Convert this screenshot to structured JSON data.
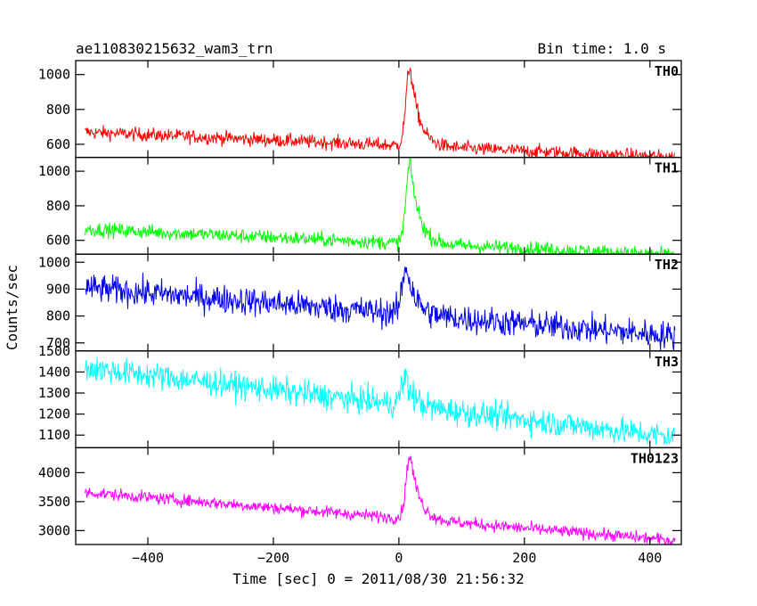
{
  "header": {
    "source_name": "ae110830215632_wam3_trn",
    "bin_time": "Bin time: 1.0 s"
  },
  "chart_data": {
    "type": "line",
    "xlabel": "Time [sec] 0 = 2011/08/30 21:56:32",
    "ylabel": "Counts/sec",
    "xlim": [
      -515,
      450
    ],
    "x_ticks": [
      -400,
      -200,
      0,
      200,
      400
    ],
    "x_range_data": [
      -500,
      440
    ],
    "bin_time_s": 1.0,
    "panels": [
      {
        "name": "TH0",
        "color": "#ff0000",
        "ylim": [
          525,
          1080
        ],
        "yticks": [
          600,
          800,
          1000
        ],
        "profile": {
          "base_start": 670,
          "base_end": 525,
          "peak": 1050,
          "peak_t": 18,
          "noise": 28
        }
      },
      {
        "name": "TH1",
        "color": "#00ff00",
        "ylim": [
          520,
          1080
        ],
        "yticks": [
          600,
          800,
          1000
        ],
        "profile": {
          "base_start": 665,
          "base_end": 515,
          "peak": 1050,
          "peak_t": 18,
          "noise": 30
        }
      },
      {
        "name": "TH2",
        "color": "#0000ee",
        "ylim": [
          670,
          1030
        ],
        "yticks": [
          700,
          800,
          900,
          1000
        ],
        "profile": {
          "base_start": 905,
          "base_end": 725,
          "peak": 990,
          "peak_t": 12,
          "noise": 38
        }
      },
      {
        "name": "TH3",
        "color": "#00ffff",
        "ylim": [
          1040,
          1500
        ],
        "yticks": [
          1100,
          1200,
          1300,
          1400,
          1500
        ],
        "profile": {
          "base_start": 1420,
          "base_end": 1090,
          "peak": 1370,
          "peak_t": 10,
          "noise": 45
        }
      },
      {
        "name": "TH0123",
        "color": "#ff00ff",
        "ylim": [
          2760,
          4430
        ],
        "yticks": [
          3000,
          3500,
          4000
        ],
        "profile": {
          "base_start": 3660,
          "base_end": 2830,
          "peak": 4320,
          "peak_t": 18,
          "noise": 75
        }
      }
    ]
  }
}
